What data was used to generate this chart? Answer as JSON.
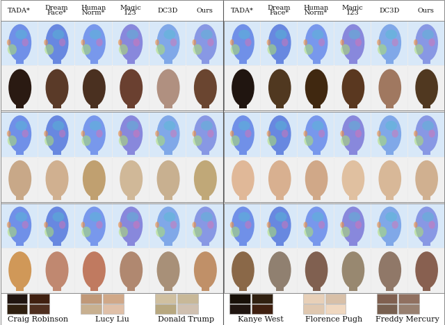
{
  "bg_color": "#ffffff",
  "header_fontsize": 7.0,
  "label_fontsize": 8.0,
  "header_color": "#111111",
  "person_label_color": "#111111",
  "col_headers": [
    "TADA*",
    "Dream\nFace*",
    "Human\nNorm*",
    "Magic\n123",
    "DC3D",
    "Ours"
  ],
  "person_labels_left": [
    "Craig Robinson",
    "Lucy Liu",
    "Donald Trump"
  ],
  "person_labels_right": [
    "Kanye West",
    "Florence Pugh",
    "Freddy Mercury"
  ],
  "divider_color": "#aaaaaa",
  "normal_map_colors": [
    [
      "#7090e8",
      "#6888e0",
      "#7898ec",
      "#8080d8",
      "#78a0e8",
      "#8090e0"
    ],
    [
      "#7090e8",
      "#6888e0",
      "#7898ec",
      "#8080d8",
      "#78a0e8",
      "#8090e0"
    ],
    [
      "#7090e8",
      "#6888e0",
      "#7898ec",
      "#8080d8",
      "#78a0e8",
      "#8090e0"
    ]
  ],
  "normal_map_colors_r": [
    [
      "#7090e8",
      "#6888e0",
      "#7898ec",
      "#8080d8",
      "#78a0e8",
      "#8090e0"
    ],
    [
      "#7090e8",
      "#6888e0",
      "#7898ec",
      "#8080d8",
      "#78a0e8",
      "#8090e0"
    ],
    [
      "#7090e8",
      "#6888e0",
      "#7898ec",
      "#8080d8",
      "#78a0e8",
      "#8090e0"
    ]
  ],
  "texture_colors_l": [
    [
      "#2a1a12",
      "#5a3a28",
      "#4a3020",
      "#6a4030",
      "#b09080",
      "#6a4530"
    ],
    [
      "#c09070",
      "#c08868",
      "#d09878",
      "#b89880",
      "#988068",
      "#b89070"
    ],
    [
      "#d09858",
      "#c08870",
      "#c07a60",
      "#b08870",
      "#a89078",
      "#c09068"
    ]
  ],
  "texture_colors_r": [
    [
      "#201510",
      "#503820",
      "#402810",
      "#5a3820",
      "#a07860",
      "#503820"
    ],
    [
      "#e0b898",
      "#d8b090",
      "#c8a080",
      "#e0c0a0",
      "#c0a888",
      "#c8b090"
    ],
    [
      "#8a6848",
      "#907060",
      "#806050",
      "#988870",
      "#907868",
      "#886050"
    ]
  ],
  "ref_colors_l": [
    [
      "#201510",
      "#402010",
      "#302010",
      "#503020"
    ],
    [
      "#c09878",
      "#d0a888",
      "#c8b090",
      "#e0c0a8"
    ],
    [
      "#d0c0a0",
      "#c8b898",
      "#b8a880",
      "#d0c0b0"
    ]
  ],
  "ref_colors_r": [
    [
      "#181008",
      "#302010",
      "#201510",
      "#402010"
    ],
    [
      "#e8d0b8",
      "#d8c0a8",
      "#e0c8b0",
      "#f0d8c0"
    ],
    [
      "#806050",
      "#907060",
      "#786050",
      "#988070"
    ]
  ]
}
